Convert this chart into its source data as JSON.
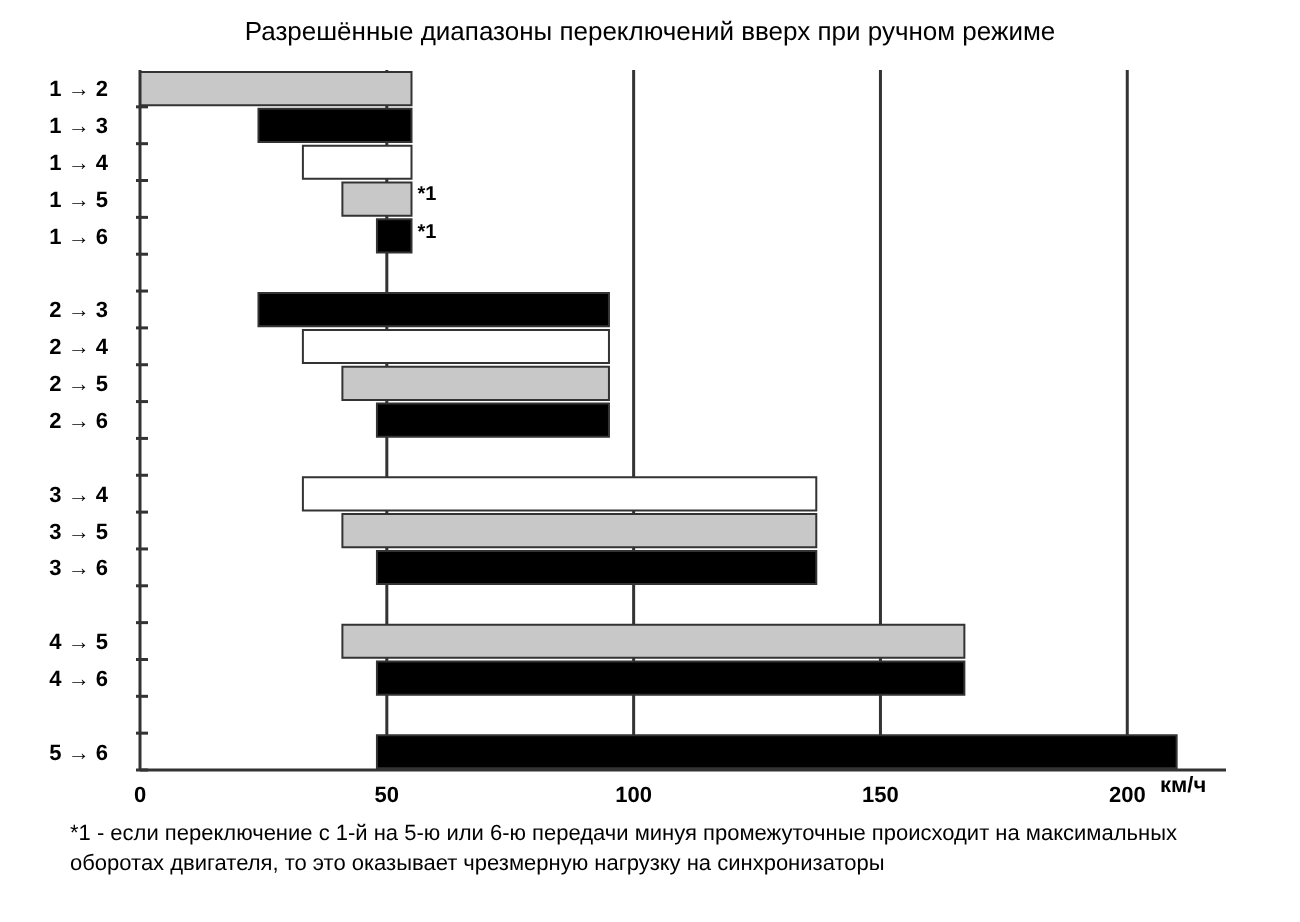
{
  "chart_data": {
    "type": "bar",
    "orientation": "horizontal",
    "title": "Разрешённые диапазоны переключений вверх при ручном режиме",
    "xlabel": "км/ч",
    "categories": [
      "1 → 2",
      "1 → 3",
      "1 → 4",
      "1 → 5",
      "1 → 6",
      null,
      "2 → 3",
      "2 → 4",
      "2 → 5",
      "2 → 6",
      null,
      "3 → 4",
      "3 → 5",
      "3 → 6",
      null,
      "4 → 5",
      "4 → 6",
      null,
      "5 → 6"
    ],
    "base": [
      0,
      24,
      33,
      41,
      48,
      null,
      24,
      33,
      41,
      48,
      null,
      33,
      41,
      48,
      null,
      41,
      48,
      null,
      48
    ],
    "values": [
      55,
      31,
      22,
      14,
      7,
      null,
      71,
      62,
      54,
      47,
      null,
      104,
      96,
      89,
      null,
      126,
      119,
      null,
      162
    ],
    "colors": [
      "#c8c8c8",
      "#000000",
      "#ffffff",
      "#c8c8c8",
      "#000000",
      null,
      "#000000",
      "#ffffff",
      "#c8c8c8",
      "#000000",
      null,
      "#ffffff",
      "#c8c8c8",
      "#000000",
      null,
      "#c8c8c8",
      "#000000",
      null,
      "#000000"
    ],
    "xlim": [
      0,
      220
    ],
    "xticks": [
      0,
      50,
      100,
      150,
      200
    ],
    "grid": "x",
    "annotations": [
      {
        "text": "*1",
        "x": 55,
        "y": "1 → 5"
      },
      {
        "text": "*1",
        "x": 55,
        "y": "1 → 6"
      },
      "*1 - если переключение с 1-й на 5-ю или 6-ю передачи минуя промежуточные происходит на максимальных оборотах двигателя, то это оказывает чрезмерную нагрузку на синхронизаторы"
    ]
  }
}
